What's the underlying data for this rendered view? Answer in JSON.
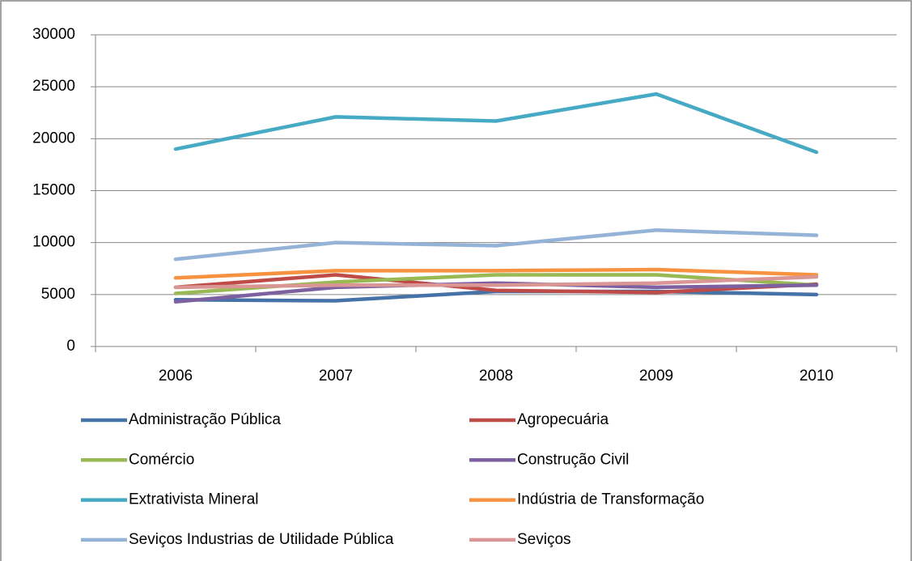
{
  "chart_data": {
    "type": "line",
    "categories": [
      "2006",
      "2007",
      "2008",
      "2009",
      "2010"
    ],
    "series": [
      {
        "name": "Administração Pública",
        "color": "#4572a7",
        "values": [
          4500,
          4400,
          5300,
          5300,
          5000
        ]
      },
      {
        "name": "Agropecuária",
        "color": "#be4b48",
        "values": [
          5700,
          6900,
          5400,
          5200,
          6000
        ]
      },
      {
        "name": "Comércio",
        "color": "#98b954",
        "values": [
          5100,
          6200,
          6900,
          6900,
          5900
        ]
      },
      {
        "name": "Construção Civil",
        "color": "#7d60a0",
        "values": [
          4300,
          5700,
          6100,
          5700,
          5900
        ]
      },
      {
        "name": "Extrativista Mineral",
        "color": "#46aac5",
        "values": [
          19000,
          22100,
          21700,
          24300,
          18700
        ]
      },
      {
        "name": "Indústria de Transformação",
        "color": "#f69240",
        "values": [
          6600,
          7300,
          7300,
          7400,
          6900
        ]
      },
      {
        "name": "Seviços Industrias de Utilidade Pública",
        "color": "#95b3d7",
        "values": [
          8400,
          10000,
          9700,
          11200,
          10700
        ]
      },
      {
        "name": "Seviços",
        "color": "#d99694",
        "values": [
          5700,
          5900,
          5900,
          6100,
          6700
        ]
      }
    ],
    "ylim": [
      0,
      30000
    ],
    "yticks": [
      0,
      5000,
      10000,
      15000,
      20000,
      25000,
      30000
    ],
    "grid": true,
    "legend": "bottom"
  }
}
